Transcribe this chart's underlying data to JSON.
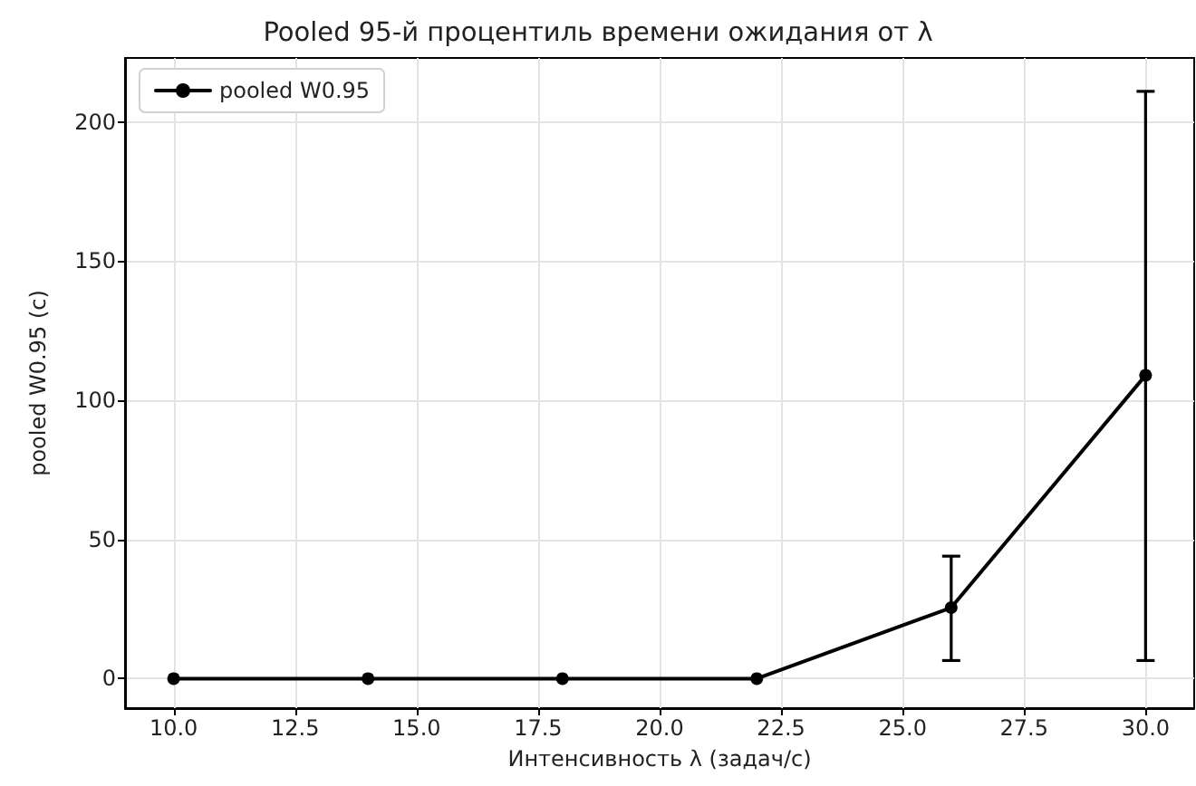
{
  "chart_data": {
    "type": "line",
    "title": "Pooled 95-й процентиль времени ожидания от λ",
    "xlabel": "Интенсивность λ (задач/с)",
    "ylabel": "pooled W0.95 (с)",
    "x": [
      10,
      14,
      18,
      22,
      26,
      30
    ],
    "series": [
      {
        "name": "pooled W0.95",
        "color": "#000000",
        "values": [
          0,
          0,
          0,
          0,
          25.5,
          109
        ],
        "errors": [
          null,
          null,
          null,
          null,
          [
            6.5,
            44
          ],
          [
            6.5,
            211
          ]
        ]
      }
    ],
    "xlim": [
      9,
      31
    ],
    "xticks": [
      {
        "value": 10,
        "label": "10.0"
      },
      {
        "value": 12.5,
        "label": "12.5"
      },
      {
        "value": 15,
        "label": "15.0"
      },
      {
        "value": 17.5,
        "label": "17.5"
      },
      {
        "value": 20,
        "label": "20.0"
      },
      {
        "value": 22.5,
        "label": "22.5"
      },
      {
        "value": 25,
        "label": "25.0"
      },
      {
        "value": 27.5,
        "label": "27.5"
      },
      {
        "value": 30,
        "label": "30.0"
      }
    ],
    "ylim": [
      -10.6,
      223
    ],
    "yticks": [
      0,
      50,
      100,
      150,
      200
    ],
    "grid": true,
    "legend": "top left",
    "marker": "circle",
    "line_style": "solid"
  }
}
